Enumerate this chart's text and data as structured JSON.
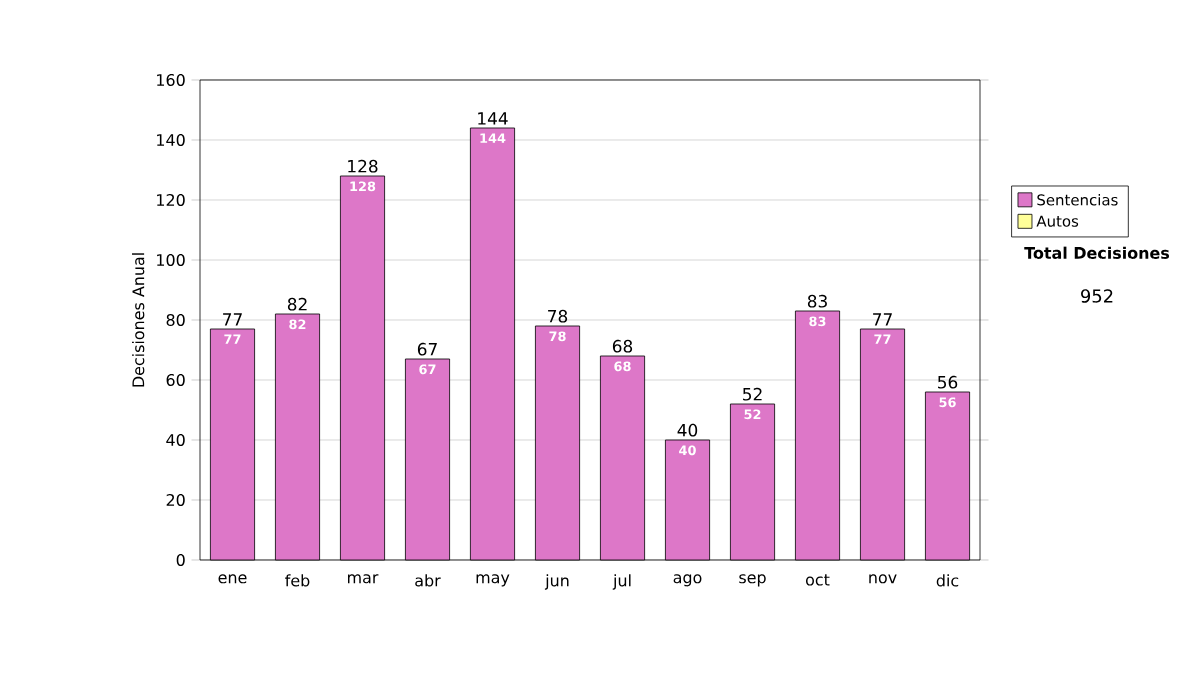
{
  "chart_data": {
    "type": "bar",
    "stacked": true,
    "ylabel": "Decisiones Anual",
    "categories": [
      "ene",
      "feb",
      "mar",
      "abr",
      "may",
      "jun",
      "jul",
      "ago",
      "sep",
      "oct",
      "nov",
      "dic"
    ],
    "series": [
      {
        "name": "Sentencias",
        "color": "#dd77c8",
        "values": [
          77,
          82,
          128,
          67,
          144,
          78,
          68,
          40,
          52,
          83,
          77,
          56
        ],
        "value_labels": [
          "77",
          "82",
          "128",
          "67",
          "144",
          "78",
          "68",
          "40",
          "52",
          "83",
          "77",
          "56"
        ]
      },
      {
        "name": "Autos",
        "color": "#ffff99",
        "values": [
          0,
          0,
          0,
          0,
          0,
          0,
          0,
          0,
          0,
          0,
          0,
          0
        ]
      }
    ],
    "totals": [
      "77",
      "82",
      "128",
      "67",
      "144",
      "78",
      "68",
      "40",
      "52",
      "83",
      "77",
      "56"
    ],
    "ylim": [
      0,
      160
    ],
    "yticks": [
      0,
      20,
      40,
      60,
      80,
      100,
      120,
      140,
      160
    ],
    "grid": "y",
    "legend": "right",
    "annotations": [
      "Total Decisiones",
      "952"
    ]
  }
}
